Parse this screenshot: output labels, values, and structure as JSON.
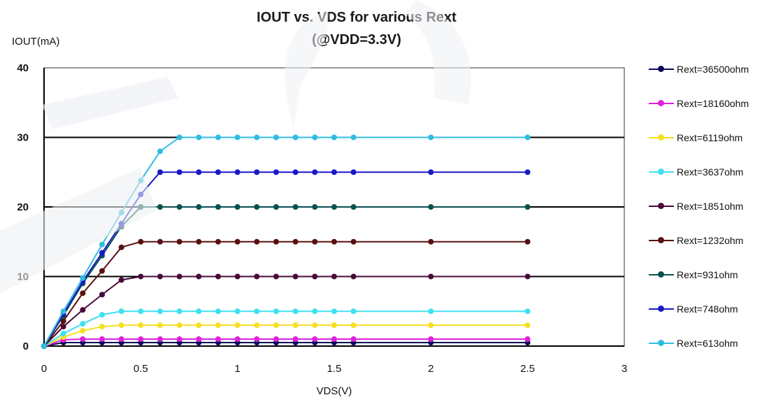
{
  "chart_data": {
    "type": "line",
    "title_line1": "IOUT vs. VDS for various Rext",
    "title_line2": "(@VDD=3.3V)",
    "ylabel": "IOUT(mA)",
    "xlabel": "VDS(V)",
    "xlim": [
      0,
      3
    ],
    "ylim": [
      0,
      40
    ],
    "xticks": [
      "0",
      "0.5",
      "1",
      "1.5",
      "2",
      "2.5",
      "3"
    ],
    "yticks": [
      "0",
      "10",
      "20",
      "30",
      "40"
    ],
    "grid": "horizontal",
    "legend_position": "right",
    "x": [
      0,
      0.1,
      0.2,
      0.3,
      0.4,
      0.5,
      0.6,
      0.7,
      0.8,
      0.9,
      1.0,
      1.1,
      1.2,
      1.3,
      1.4,
      1.5,
      1.6,
      2.0,
      2.5
    ],
    "series": [
      {
        "name": "Rext=36500ohm",
        "color": "#0a0a5a",
        "values": [
          0,
          0.5,
          0.5,
          0.5,
          0.5,
          0.5,
          0.5,
          0.5,
          0.5,
          0.5,
          0.5,
          0.5,
          0.5,
          0.5,
          0.5,
          0.5,
          0.5,
          0.5,
          0.5
        ]
      },
      {
        "name": "Rext=18160ohm",
        "color": "#e020d8",
        "values": [
          0,
          0.9,
          1.0,
          1.0,
          1.0,
          1.0,
          1.0,
          1.0,
          1.0,
          1.0,
          1.0,
          1.0,
          1.0,
          1.0,
          1.0,
          1.0,
          1.0,
          1.0,
          1.0
        ]
      },
      {
        "name": "Rext=6119ohm",
        "color": "#f5e020",
        "values": [
          0,
          1.3,
          2.2,
          2.8,
          3.0,
          3.0,
          3.0,
          3.0,
          3.0,
          3.0,
          3.0,
          3.0,
          3.0,
          3.0,
          3.0,
          3.0,
          3.0,
          3.0,
          3.0
        ]
      },
      {
        "name": "Rext=3637ohm",
        "color": "#40e0f0",
        "values": [
          0,
          1.8,
          3.2,
          4.5,
          5.0,
          5.0,
          5.0,
          5.0,
          5.0,
          5.0,
          5.0,
          5.0,
          5.0,
          5.0,
          5.0,
          5.0,
          5.0,
          5.0,
          5.0
        ]
      },
      {
        "name": "Rext=1851ohm",
        "color": "#4a0a3a",
        "values": [
          0,
          2.8,
          5.2,
          7.4,
          9.5,
          10.0,
          10.0,
          10.0,
          10.0,
          10.0,
          10.0,
          10.0,
          10.0,
          10.0,
          10.0,
          10.0,
          10.0,
          10.0,
          10.0
        ]
      },
      {
        "name": "Rext=1232ohm",
        "color": "#5a1010",
        "values": [
          0,
          3.6,
          7.6,
          10.8,
          14.2,
          15.0,
          15.0,
          15.0,
          15.0,
          15.0,
          15.0,
          15.0,
          15.0,
          15.0,
          15.0,
          15.0,
          15.0,
          15.0,
          15.0
        ]
      },
      {
        "name": "Rext=931ohm",
        "color": "#0a5050",
        "values": [
          0,
          4.4,
          9.0,
          13.0,
          17.2,
          20.0,
          20.0,
          20.0,
          20.0,
          20.0,
          20.0,
          20.0,
          20.0,
          20.0,
          20.0,
          20.0,
          20.0,
          20.0,
          20.0
        ]
      },
      {
        "name": "Rext=748ohm",
        "color": "#1818c8",
        "values": [
          0,
          4.6,
          9.3,
          13.4,
          17.6,
          21.8,
          25.0,
          25.0,
          25.0,
          25.0,
          25.0,
          25.0,
          25.0,
          25.0,
          25.0,
          25.0,
          25.0,
          25.0,
          25.0
        ]
      },
      {
        "name": "Rext=613ohm",
        "color": "#30bce0",
        "values": [
          0,
          5.0,
          9.8,
          14.6,
          19.2,
          23.8,
          28.0,
          30.0,
          30.0,
          30.0,
          30.0,
          30.0,
          30.0,
          30.0,
          30.0,
          30.0,
          30.0,
          30.0,
          30.0
        ]
      }
    ]
  }
}
